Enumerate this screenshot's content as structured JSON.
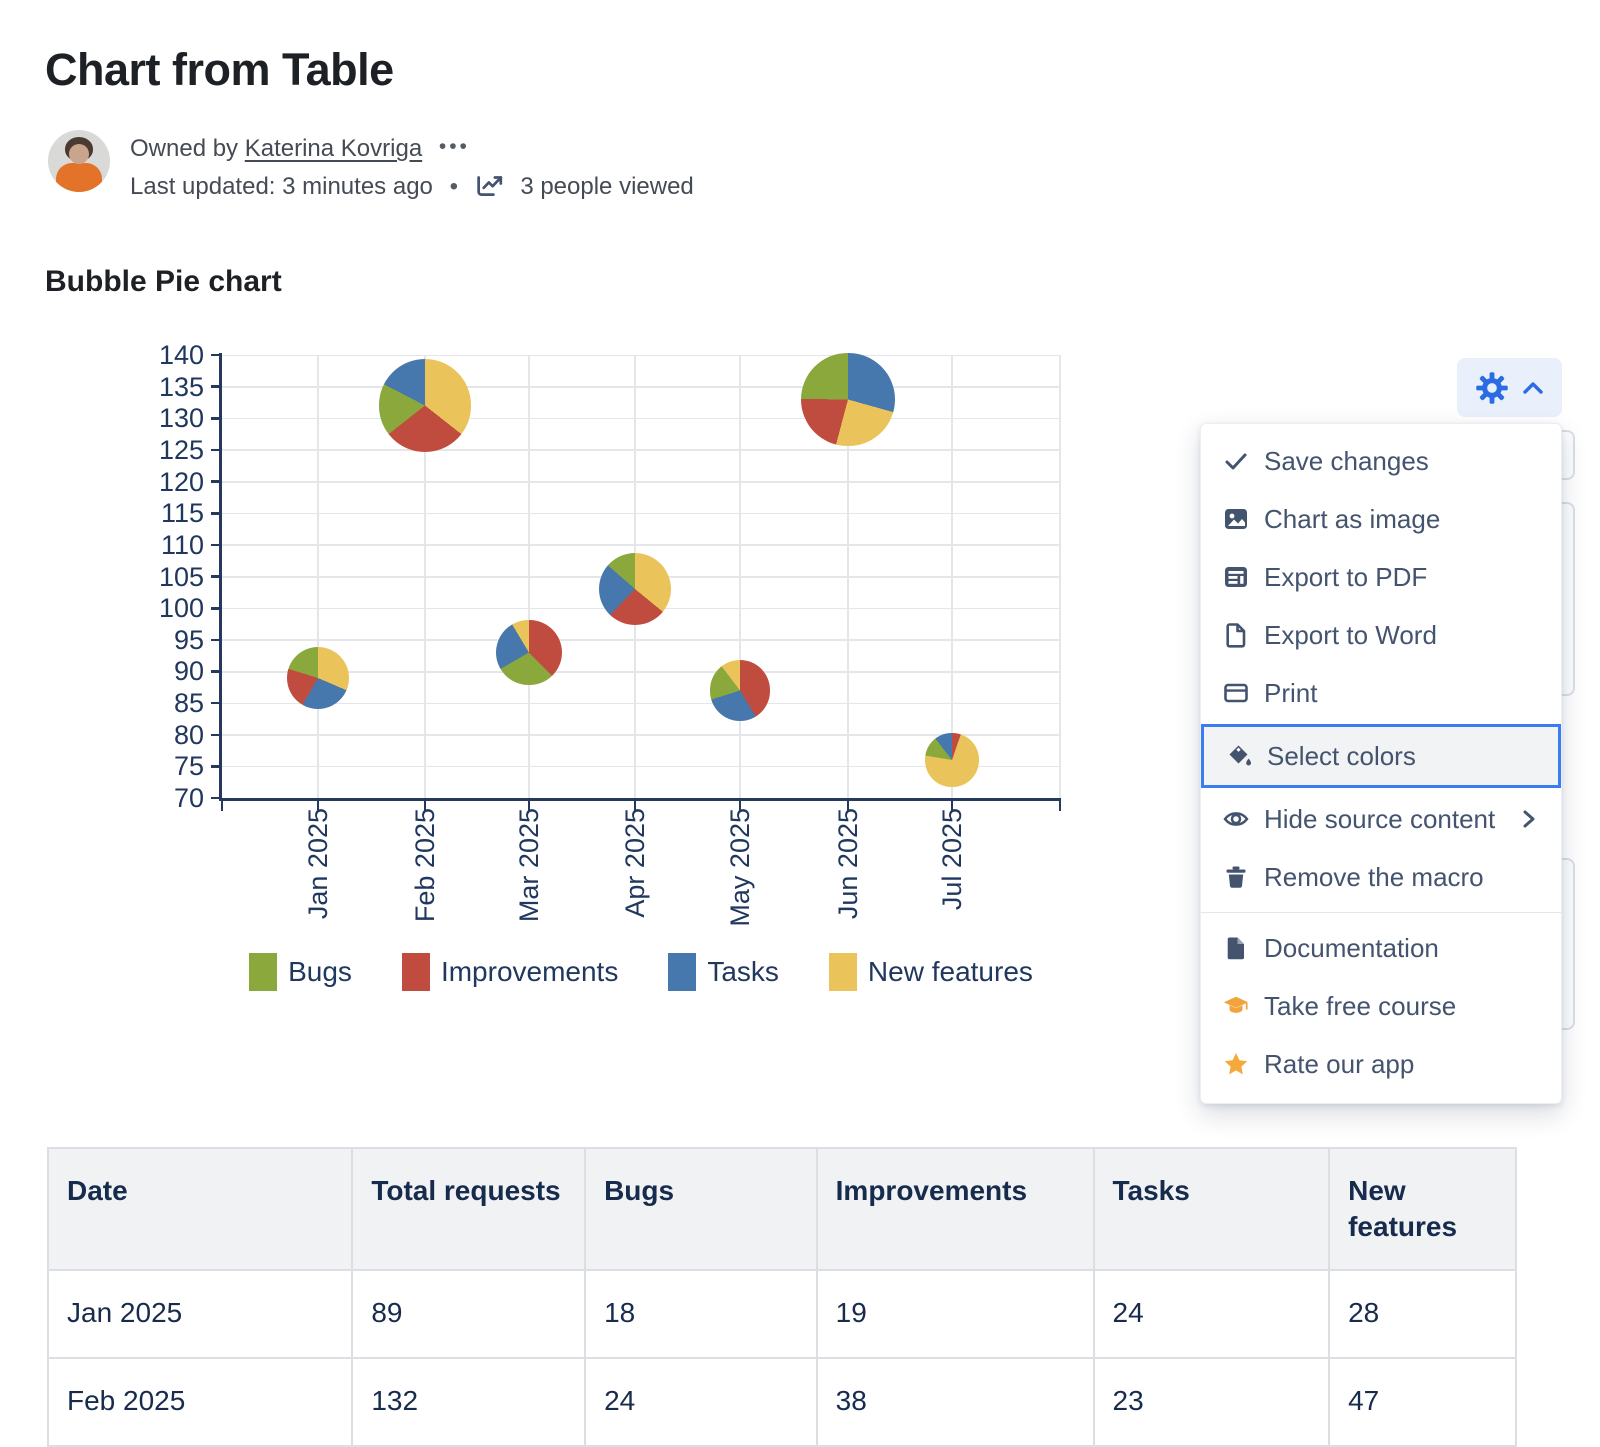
{
  "page": {
    "title": "Chart from Table"
  },
  "byline": {
    "owned_by_prefix": "Owned by",
    "owner": "Katerina Kovriga",
    "more_dots": "•••",
    "last_updated": "Last updated: 3 minutes ago",
    "separator": "•",
    "views": "3 people viewed"
  },
  "section": {
    "title": "Bubble Pie chart"
  },
  "chart_data": {
    "type": "bubble-pie",
    "title": "Bubble Pie chart",
    "x_categories": [
      "Jan 2025",
      "Feb 2025",
      "Mar 2025",
      "Apr 2025",
      "May 2025",
      "Jun 2025",
      "Jul 2025"
    ],
    "y_axis": {
      "min": 70,
      "max": 140,
      "step": 5
    },
    "grid": true,
    "legend_position": "bottom",
    "legend": [
      "Bugs",
      "Improvements",
      "Tasks",
      "New features"
    ],
    "series_colors": {
      "Bugs": "#8ba83c",
      "Improvements": "#c04c3f",
      "Tasks": "#4677ad",
      "New features": "#eac45a"
    },
    "note": "bubble y = total requests; pie slices in clockwise draw order from 12 o'clock; Mar-Jul slice values estimated from pixels",
    "bubbles": [
      {
        "month": "Jan 2025",
        "total": 89,
        "segments": [
          [
            "New features",
            28
          ],
          [
            "Tasks",
            24
          ],
          [
            "Improvements",
            19
          ],
          [
            "Bugs",
            18
          ]
        ]
      },
      {
        "month": "Feb 2025",
        "total": 132,
        "segments": [
          [
            "New features",
            47
          ],
          [
            "Improvements",
            38
          ],
          [
            "Bugs",
            24
          ],
          [
            "Tasks",
            23
          ]
        ]
      },
      {
        "month": "Mar 2025",
        "total": 93,
        "segments": [
          [
            "Improvements",
            35
          ],
          [
            "Bugs",
            27
          ],
          [
            "Tasks",
            23
          ],
          [
            "New features",
            8
          ]
        ]
      },
      {
        "month": "Apr 2025",
        "total": 103,
        "segments": [
          [
            "New features",
            37
          ],
          [
            "Improvements",
            27
          ],
          [
            "Tasks",
            25
          ],
          [
            "Bugs",
            14
          ]
        ]
      },
      {
        "month": "May 2025",
        "total": 87,
        "segments": [
          [
            "Improvements",
            36
          ],
          [
            "Tasks",
            25
          ],
          [
            "Bugs",
            17
          ],
          [
            "New features",
            9
          ]
        ]
      },
      {
        "month": "Jun 2025",
        "total": 133,
        "segments": [
          [
            "Tasks",
            39
          ],
          [
            "New features",
            33
          ],
          [
            "Improvements",
            28
          ],
          [
            "Bugs",
            33
          ]
        ]
      },
      {
        "month": "Jul 2025",
        "total": 76,
        "segments": [
          [
            "Improvements",
            4
          ],
          [
            "New features",
            55
          ],
          [
            "Bugs",
            9
          ],
          [
            "Tasks",
            8
          ]
        ]
      }
    ]
  },
  "gear": {
    "tooltip": "Chart settings"
  },
  "menu": {
    "groups": [
      {
        "items": [
          {
            "icon": "check",
            "label": "Save changes"
          },
          {
            "icon": "image",
            "label": "Chart as image"
          },
          {
            "icon": "pdf",
            "label": "Export to PDF"
          },
          {
            "icon": "word",
            "label": "Export to Word"
          },
          {
            "icon": "print",
            "label": "Print"
          },
          {
            "icon": "colors",
            "label": "Select colors",
            "highlighted": true
          },
          {
            "icon": "eye",
            "label": "Hide source content",
            "submenu": true
          },
          {
            "icon": "trash",
            "label": "Remove the macro"
          }
        ]
      },
      {
        "items": [
          {
            "icon": "doc",
            "label": "Documentation"
          },
          {
            "icon": "course",
            "label": "Take free course"
          },
          {
            "icon": "star",
            "label": "Rate our app"
          }
        ]
      }
    ]
  },
  "table": {
    "headers": [
      "Date",
      "Total requests",
      "Bugs",
      "Improvements",
      "Tasks",
      "New features"
    ],
    "rows": [
      [
        "Jan 2025",
        "89",
        "18",
        "19",
        "24",
        "28"
      ],
      [
        "Feb 2025",
        "132",
        "24",
        "38",
        "23",
        "47"
      ]
    ]
  },
  "colors": {
    "accent_blue": "#2c6ce3",
    "highlight_border": "#3b7cf2",
    "menu_slate": "#44546f",
    "orange": "#f2a33c",
    "axis_navy": "#24395b"
  }
}
